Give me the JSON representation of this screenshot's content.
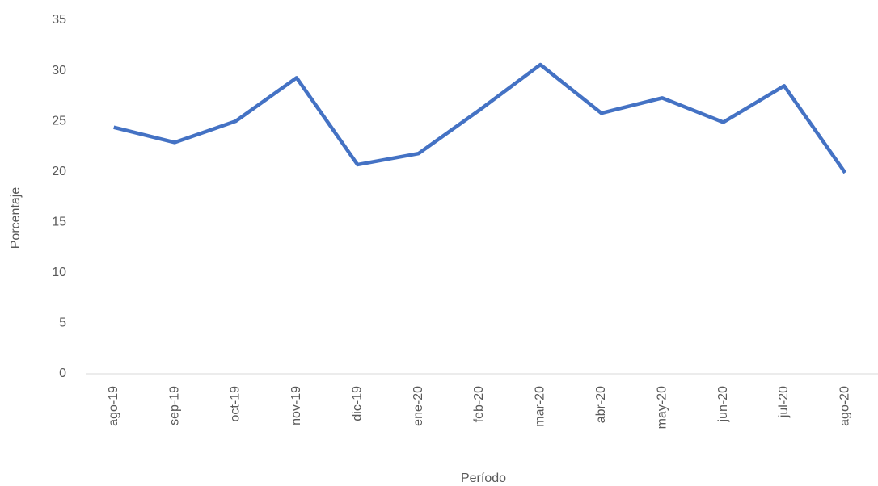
{
  "chart_data": {
    "type": "line",
    "x_label": "Período",
    "y_label": "Porcentaje",
    "categories": [
      "ago-19",
      "sep-19",
      "oct-19",
      "nov-19",
      "dic-19",
      "ene-20",
      "feb-20",
      "mar-20",
      "abr-20",
      "may-20",
      "jun-20",
      "jul-20",
      "ago-20"
    ],
    "series": [
      {
        "color": "#4472c4",
        "values": [
          24.4,
          22.9,
          25.0,
          29.3,
          20.7,
          21.8,
          26.1,
          30.6,
          25.8,
          27.3,
          24.9,
          28.5,
          19.9
        ]
      }
    ],
    "ylim": [
      0,
      35
    ],
    "yticks": [
      0,
      5,
      10,
      15,
      20,
      25,
      30,
      35
    ],
    "grid": false
  }
}
